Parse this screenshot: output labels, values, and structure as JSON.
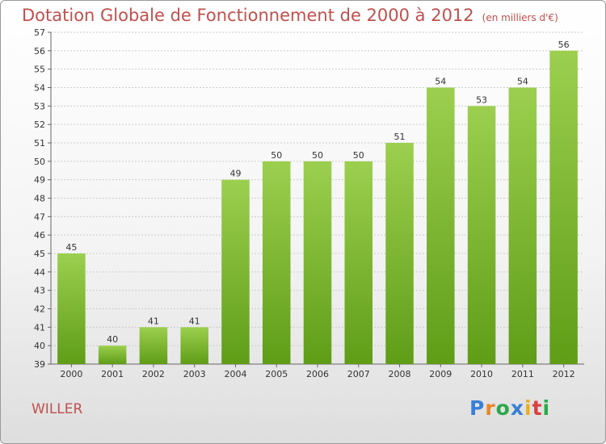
{
  "chart_data": {
    "type": "bar",
    "title": "Dotation Globale de Fonctionnement de 2000 à 2012",
    "subtitle": "(en milliers d'€)",
    "xlabel": "",
    "ylabel": "",
    "categories": [
      "2000",
      "2001",
      "2002",
      "2003",
      "2004",
      "2005",
      "2006",
      "2007",
      "2008",
      "2009",
      "2010",
      "2011",
      "2012"
    ],
    "values": [
      45,
      40,
      41,
      41,
      49,
      50,
      50,
      50,
      51,
      54,
      53,
      54,
      56
    ],
    "ylim": [
      39,
      57
    ],
    "yticks": [
      39,
      40,
      41,
      42,
      43,
      44,
      45,
      46,
      47,
      48,
      49,
      50,
      51,
      52,
      53,
      54,
      55,
      56,
      57
    ],
    "grid": "horizontal",
    "bar_color": "#8cc63f",
    "bar_color_dark": "#5a9a14"
  },
  "commune": "WILLER",
  "logo": "Proxiti",
  "colors": {
    "title": "#c0504d",
    "logo": [
      "#3a7fd5",
      "#e8862a",
      "#2aa84a",
      "#3a7fd5",
      "#e8b020",
      "#d94040",
      "#2aa84a"
    ]
  }
}
